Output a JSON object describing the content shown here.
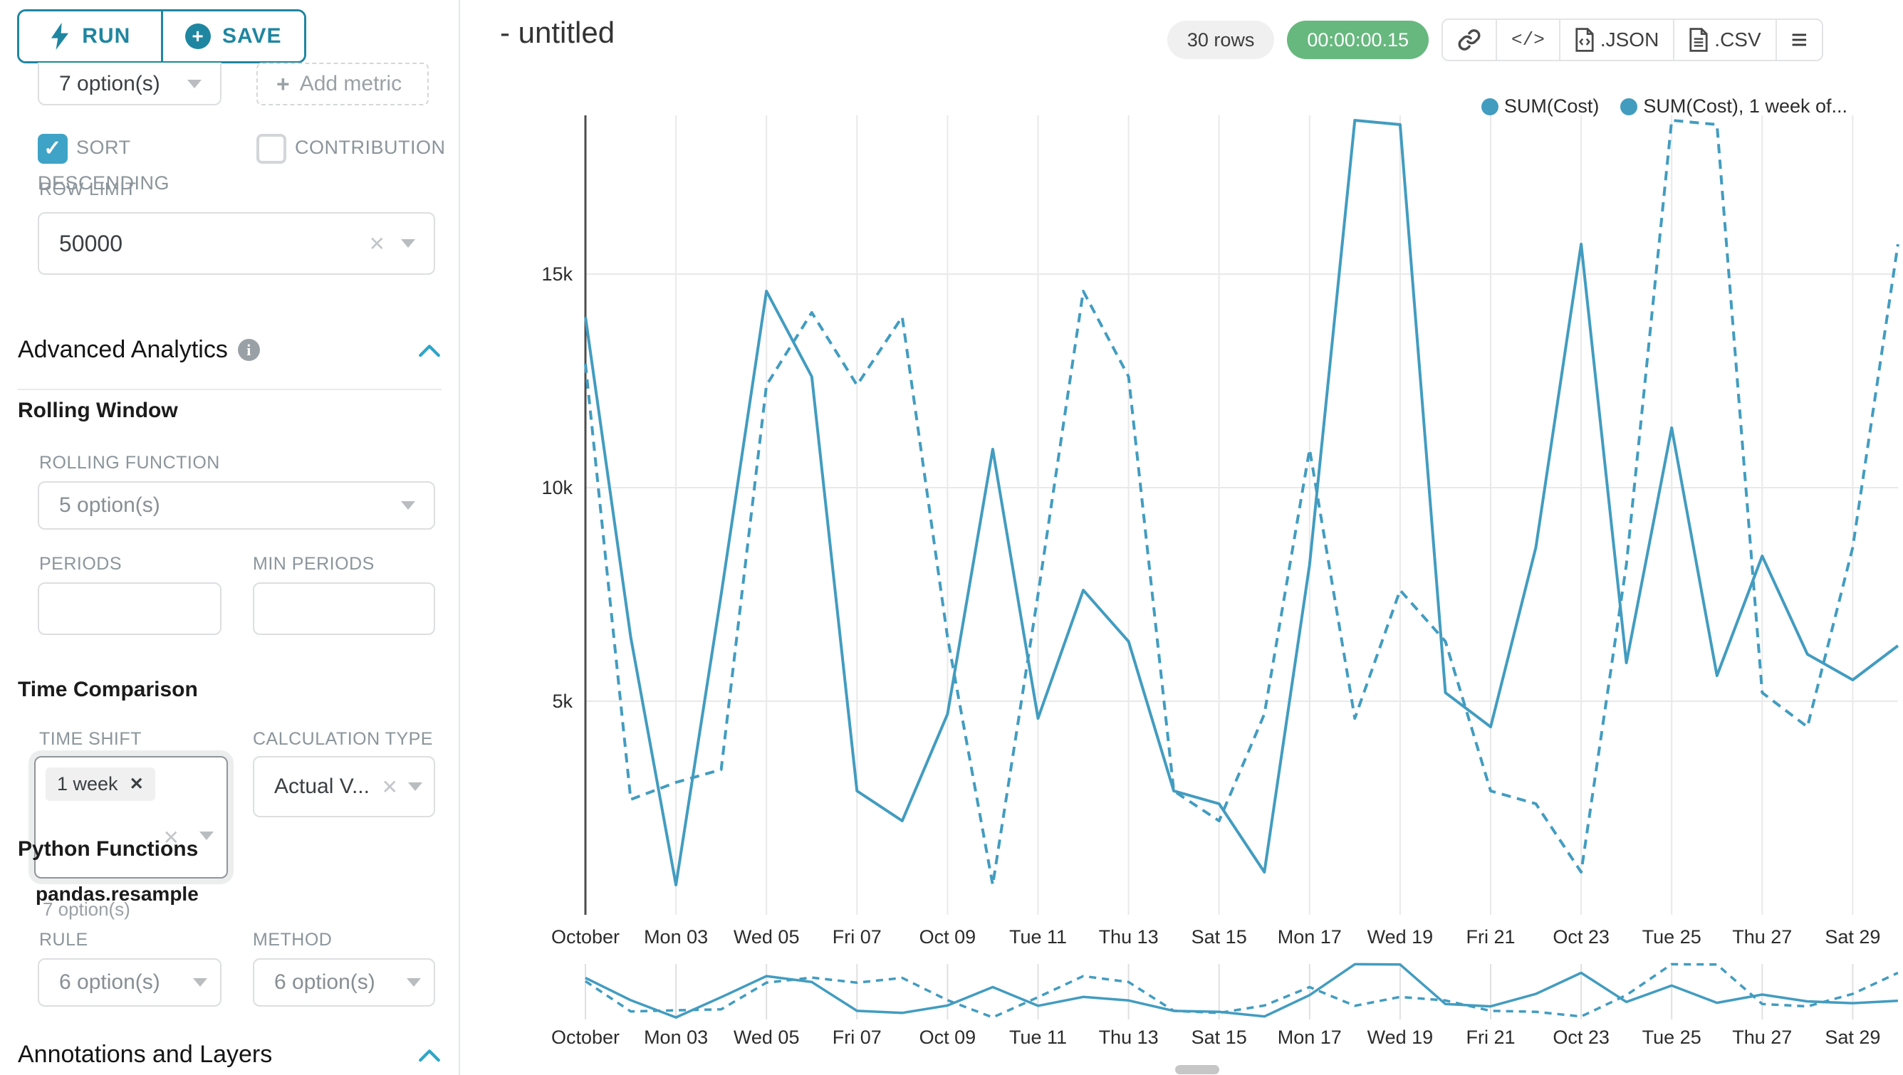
{
  "sidebar": {
    "run_label": "RUN",
    "save_label": "SAVE",
    "groupby_value": "7 option(s)",
    "add_metric_label": "Add metric",
    "sort_descending_label": "SORT DESCENDING",
    "contribution_label": "CONTRIBUTION",
    "row_limit_label": "ROW LIMIT",
    "row_limit_value": "50000",
    "advanced_analytics_title": "Advanced Analytics",
    "rolling_window": {
      "title": "Rolling Window",
      "rolling_function_label": "ROLLING FUNCTION",
      "rolling_function_value": "5 option(s)",
      "periods_label": "PERIODS",
      "min_periods_label": "MIN PERIODS"
    },
    "time_comparison": {
      "title": "Time Comparison",
      "time_shift_label": "TIME SHIFT",
      "time_shift_tag": "1 week",
      "time_shift_helper": "7 option(s)",
      "calculation_type_label": "CALCULATION TYPE",
      "calculation_type_value": "Actual V..."
    },
    "python_functions": {
      "title": "Python Functions",
      "subtitle": "pandas.resample",
      "rule_label": "RULE",
      "rule_value": "6 option(s)",
      "method_label": "METHOD",
      "method_value": "6 option(s)"
    },
    "annotations_title": "Annotations and Layers"
  },
  "header": {
    "title": "- untitled",
    "rows_badge": "30 rows",
    "timer_badge": "00:00:00.15",
    "json_label": ".JSON",
    "csv_label": ".CSV"
  },
  "colors": {
    "accent_teal": "#1f86a1",
    "checkbox_teal": "#3ea3c6",
    "series_teal": "#429cc0",
    "timer_green": "#67b87e",
    "gridline": "#e9e9e9",
    "axis_line": "#4c4c4c",
    "tick_text": "#2c2c2c"
  },
  "chart_data": {
    "type": "line",
    "title": "",
    "xlabel": "",
    "ylabel": "",
    "x_days_of_october": [
      1,
      2,
      3,
      4,
      5,
      6,
      7,
      8,
      9,
      10,
      11,
      12,
      13,
      14,
      15,
      16,
      17,
      18,
      19,
      20,
      21,
      22,
      23,
      24,
      25,
      26,
      27,
      28,
      29,
      30
    ],
    "x_tick_days": [
      1,
      3,
      5,
      7,
      9,
      11,
      13,
      15,
      17,
      19,
      21,
      23,
      25,
      27,
      29
    ],
    "x_tick_labels": [
      "October",
      "Mon 03",
      "Wed 05",
      "Fri 07",
      "Oct 09",
      "Tue 11",
      "Thu 13",
      "Sat 15",
      "Mon 17",
      "Wed 19",
      "Fri 21",
      "Oct 23",
      "Tue 25",
      "Thu 27",
      "Sat 29"
    ],
    "y_ticks": [
      {
        "value": 5000,
        "label": "5k"
      },
      {
        "value": 10000,
        "label": "10k"
      },
      {
        "value": 15000,
        "label": "15k"
      }
    ],
    "ylim": [
      0,
      18700
    ],
    "grid": true,
    "legend_position": "top-right",
    "has_mini_preview_chart": true,
    "series": [
      {
        "name": "SUM(Cost)",
        "legend_label": "SUM(Cost)",
        "line_style": "solid",
        "color": "#429cc0",
        "values": [
          14000,
          6500,
          700,
          7500,
          14600,
          12600,
          2900,
          2200,
          4700,
          10900,
          4600,
          7600,
          6400,
          2900,
          2600,
          1000,
          8200,
          18600,
          18500,
          5200,
          4400,
          8600,
          15700,
          5900,
          11400,
          5600,
          8400,
          6100,
          5500,
          6300
        ]
      },
      {
        "name": "SUM(Cost), 1 week offset",
        "legend_label": "SUM(Cost), 1 week of...",
        "line_style": "dashed",
        "color": "#429cc0",
        "values": [
          12900,
          2700,
          3100,
          3400,
          12400,
          14100,
          12400,
          14000,
          6500,
          700,
          7500,
          14600,
          12600,
          2900,
          2200,
          4700,
          10900,
          4600,
          7600,
          6400,
          2900,
          2600,
          1000,
          8200,
          18600,
          18500,
          5200,
          4400,
          8600,
          15700
        ]
      }
    ]
  }
}
